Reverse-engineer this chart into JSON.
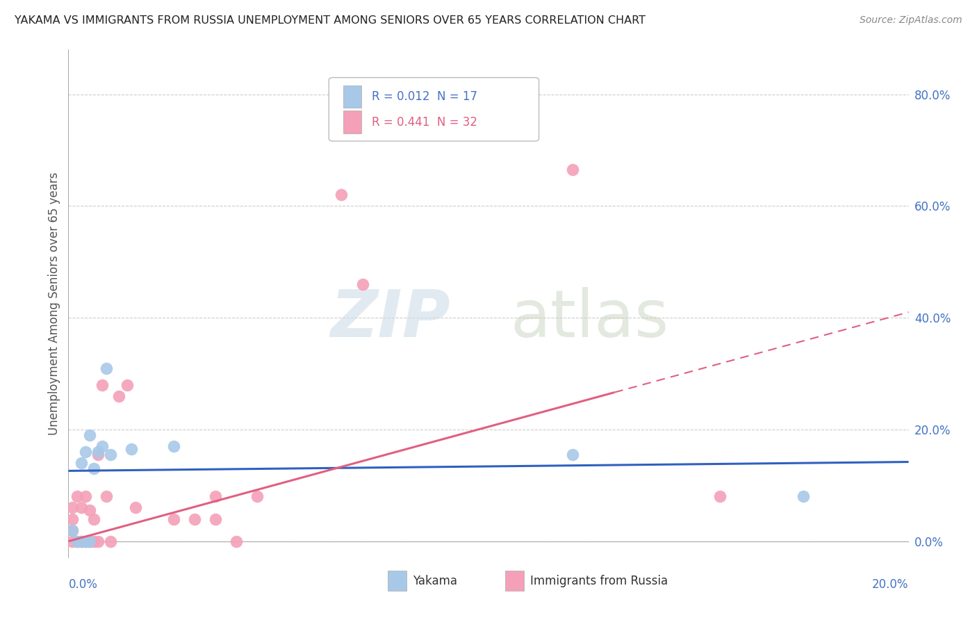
{
  "title": "YAKAMA VS IMMIGRANTS FROM RUSSIA UNEMPLOYMENT AMONG SENIORS OVER 65 YEARS CORRELATION CHART",
  "source": "Source: ZipAtlas.com",
  "ylabel": "Unemployment Among Seniors over 65 years",
  "xmin": 0.0,
  "xmax": 0.2,
  "ymin": -0.03,
  "ymax": 0.88,
  "legend_entry1_r": "0.012",
  "legend_entry1_n": "17",
  "legend_entry2_r": "0.441",
  "legend_entry2_n": "32",
  "legend_label1": "Yakama",
  "legend_label2": "Immigrants from Russia",
  "yakama_color": "#a8c8e8",
  "russia_color": "#f4a0b8",
  "trendline_yakama_color": "#3060c0",
  "trendline_russia_color": "#e06080",
  "watermark_zip": "ZIP",
  "watermark_atlas": "atlas",
  "background_color": "#ffffff",
  "grid_color": "#cccccc",
  "ytick_values": [
    0.0,
    0.2,
    0.4,
    0.6,
    0.8
  ],
  "ytick_labels": [
    "0.0%",
    "20.0%",
    "40.0%",
    "60.0%",
    "80.0%"
  ],
  "yakama_scatter_x": [
    0.001,
    0.002,
    0.003,
    0.003,
    0.004,
    0.004,
    0.005,
    0.005,
    0.006,
    0.007,
    0.008,
    0.009,
    0.01,
    0.015,
    0.025,
    0.12,
    0.175
  ],
  "yakama_scatter_y": [
    0.02,
    0.0,
    0.14,
    0.0,
    0.16,
    0.0,
    0.19,
    0.0,
    0.13,
    0.16,
    0.17,
    0.31,
    0.155,
    0.165,
    0.17,
    0.155,
    0.08
  ],
  "russia_scatter_x": [
    0.001,
    0.001,
    0.001,
    0.001,
    0.002,
    0.002,
    0.003,
    0.003,
    0.004,
    0.004,
    0.005,
    0.005,
    0.006,
    0.006,
    0.007,
    0.007,
    0.008,
    0.009,
    0.01,
    0.012,
    0.014,
    0.016,
    0.025,
    0.03,
    0.035,
    0.035,
    0.04,
    0.045,
    0.065,
    0.07,
    0.12,
    0.155
  ],
  "russia_scatter_y": [
    0.0,
    0.02,
    0.04,
    0.06,
    0.0,
    0.08,
    0.0,
    0.06,
    0.0,
    0.08,
    0.0,
    0.055,
    0.0,
    0.04,
    0.0,
    0.155,
    0.28,
    0.08,
    0.0,
    0.26,
    0.28,
    0.06,
    0.04,
    0.04,
    0.08,
    0.04,
    0.0,
    0.08,
    0.62,
    0.46,
    0.665,
    0.08
  ],
  "yakama_slope": 0.08,
  "yakama_intercept": 0.126,
  "russia_slope": 2.05,
  "russia_intercept": 0.0,
  "russia_trendline_solid_end": 0.13,
  "russia_trendline_dashed_start": 0.13
}
